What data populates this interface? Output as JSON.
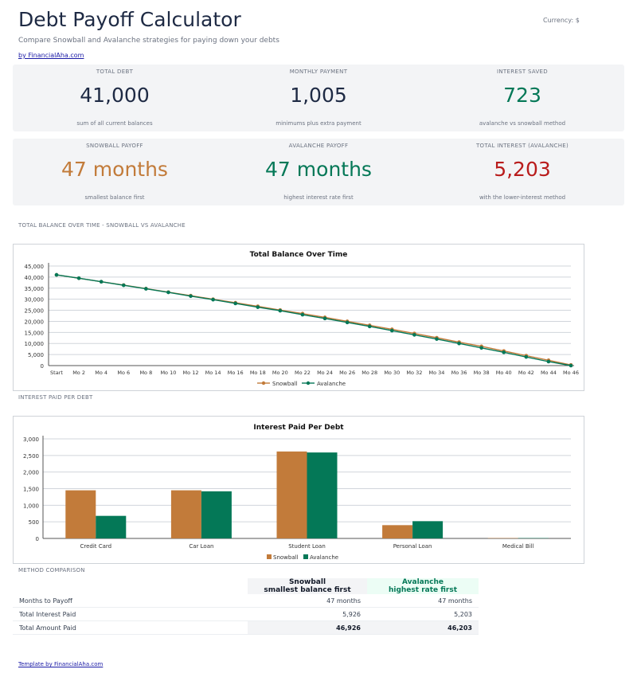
{
  "header": {
    "title": "Debt Payoff Calculator",
    "currency_label": "Currency: $",
    "subtitle": "Compare Snowball and Avalanche strategies for paying down your debts",
    "by_link": "by FinancialAha.com"
  },
  "cards_row1": [
    {
      "label": "TOTAL DEBT",
      "value": "41,000",
      "sub": "sum of all current balances",
      "color": "#1e2a44"
    },
    {
      "label": "MONTHLY PAYMENT",
      "value": "1,005",
      "sub": "minimums plus extra payment",
      "color": "#1e2a44"
    },
    {
      "label": "INTEREST SAVED",
      "value": "723",
      "sub": "avalanche vs snowball method",
      "color": "#047857"
    }
  ],
  "cards_row2": [
    {
      "label": "SNOWBALL PAYOFF",
      "value": "47 months",
      "sub": "smallest balance first",
      "color": "#c27b3a"
    },
    {
      "label": "AVALANCHE PAYOFF",
      "value": "47 months",
      "sub": "highest interest rate first",
      "color": "#047857"
    },
    {
      "label": "TOTAL INTEREST (AVALANCHE)",
      "value": "5,203",
      "sub": "with the lower-interest method",
      "color": "#b91c1c"
    }
  ],
  "sections": {
    "balance_label": "TOTAL BALANCE OVER TIME - SNOWBALL VS AVALANCHE",
    "interest_label": "INTEREST PAID PER DEBT",
    "comparison_label": "METHOD COMPARISON"
  },
  "colors": {
    "snowball": "#c27b3a",
    "avalanche": "#047857"
  },
  "chart_data": [
    {
      "type": "line",
      "title": "Total Balance Over Time",
      "ylim": [
        0,
        45000
      ],
      "yticks": [
        0,
        5000,
        10000,
        15000,
        20000,
        25000,
        30000,
        35000,
        40000,
        45000
      ],
      "ytick_labels": [
        "0",
        "5,000",
        "10,000",
        "15,000",
        "20,000",
        "25,000",
        "30,000",
        "35,000",
        "40,000",
        "45,000"
      ],
      "x_tick_labels": [
        "Start",
        "Mo 2",
        "Mo 4",
        "Mo 6",
        "Mo 8",
        "Mo 10",
        "Mo 12",
        "Mo 14",
        "Mo 16",
        "Mo 18",
        "Mo 20",
        "Mo 22",
        "Mo 24",
        "Mo 26",
        "Mo 28",
        "Mo 30",
        "Mo 32",
        "Mo 34",
        "Mo 36",
        "Mo 38",
        "Mo 40",
        "Mo 42",
        "Mo 44",
        "Mo 46"
      ],
      "grid": true,
      "legend": "bottom",
      "series": [
        {
          "name": "Snowball",
          "values": [
            41000,
            39500,
            37900,
            36400,
            34800,
            33200,
            31600,
            30000,
            28400,
            26800,
            25100,
            23500,
            21800,
            20000,
            18200,
            16400,
            14500,
            12600,
            10600,
            8700,
            6600,
            4500,
            2400,
            300
          ]
        },
        {
          "name": "Avalanche",
          "values": [
            41000,
            39500,
            37900,
            36300,
            34700,
            33100,
            31400,
            29800,
            28100,
            26400,
            24800,
            23000,
            21300,
            19500,
            17700,
            15800,
            13900,
            12000,
            10000,
            8000,
            6000,
            3900,
            1800,
            0
          ]
        }
      ]
    },
    {
      "type": "bar",
      "title": "Interest Paid Per Debt",
      "categories": [
        "Credit Card",
        "Car Loan",
        "Student Loan",
        "Personal Loan",
        "Medical Bill"
      ],
      "ylim": [
        0,
        3000
      ],
      "yticks": [
        0,
        500,
        1000,
        1500,
        2000,
        2500,
        3000
      ],
      "ytick_labels": [
        "0",
        "500",
        "1,000",
        "1,500",
        "2,000",
        "2,500",
        "3,000"
      ],
      "grid": true,
      "legend": "bottom",
      "series": [
        {
          "name": "Snowball",
          "values": [
            1450,
            1450,
            2620,
            400,
            10
          ]
        },
        {
          "name": "Avalanche",
          "values": [
            680,
            1420,
            2590,
            520,
            10
          ]
        }
      ]
    }
  ],
  "comparison": {
    "snowball_header": "Snowball",
    "snowball_subheader": "smallest balance first",
    "avalanche_header": "Avalanche",
    "avalanche_subheader": "highest rate first",
    "rows": [
      {
        "label": "Months to Payoff",
        "snowball": "47 months",
        "avalanche": "47 months"
      },
      {
        "label": "Total Interest Paid",
        "snowball": "5,926",
        "avalanche": "5,203"
      },
      {
        "label": "Total Amount Paid",
        "snowball": "46,926",
        "avalanche": "46,203"
      }
    ]
  },
  "footer": {
    "link": "Template by FinancialAha.com"
  }
}
